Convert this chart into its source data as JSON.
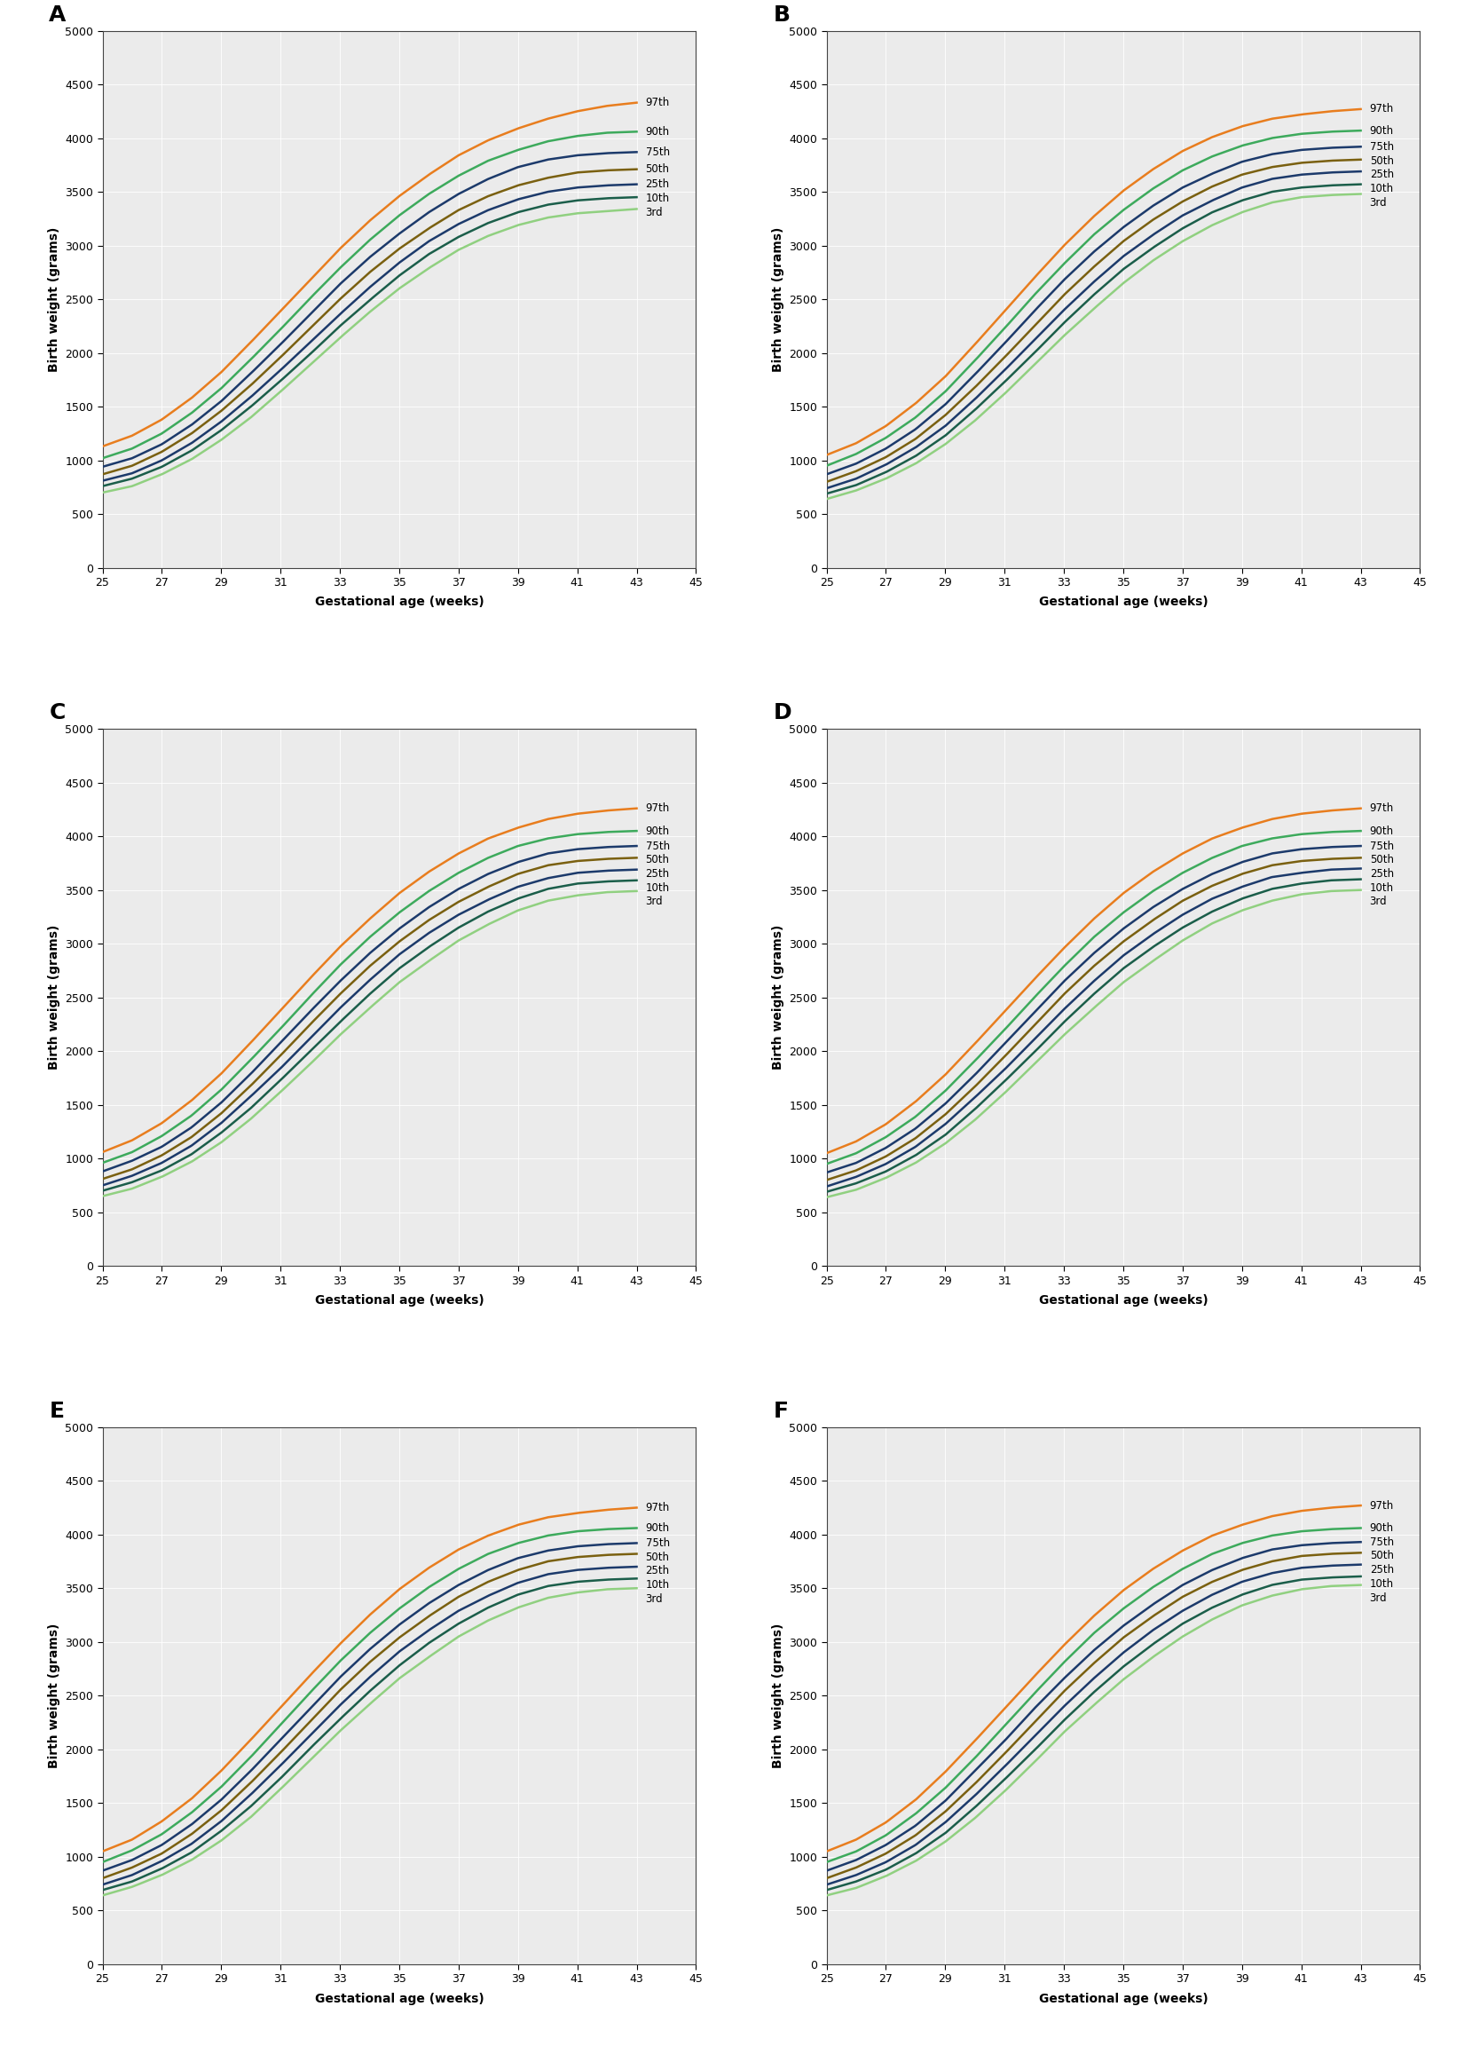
{
  "panel_labels": [
    "A",
    "B",
    "C",
    "D",
    "E",
    "F"
  ],
  "x_label": "Gestational age (weeks)",
  "y_label": "Birth weight (grams)",
  "x_ticks": [
    25,
    27,
    29,
    31,
    33,
    35,
    37,
    39,
    41,
    43,
    45
  ],
  "y_ticks": [
    0,
    500,
    1000,
    1500,
    2000,
    2500,
    3000,
    3500,
    4000,
    4500,
    5000
  ],
  "xlim": [
    25,
    45
  ],
  "ylim": [
    0,
    5000
  ],
  "percentile_labels": [
    "97th",
    "90th",
    "75th",
    "50th",
    "25th",
    "10th",
    "3rd"
  ],
  "line_colors": {
    "p97": "#E87D1E",
    "p90": "#3DAA5C",
    "p75": "#1C3A6B",
    "p50": "#7A6010",
    "p25": "#1C3A6B",
    "p10": "#1B5E4A",
    "p3": "#90D080"
  },
  "background_color": "#EBEBEB",
  "grid_color": "#FFFFFF",
  "x_weeks": [
    25,
    26,
    27,
    28,
    29,
    30,
    31,
    32,
    33,
    34,
    35,
    36,
    37,
    38,
    39,
    40,
    41,
    42,
    43
  ],
  "panels": {
    "A": {
      "p97": [
        1130,
        1230,
        1380,
        1580,
        1820,
        2100,
        2390,
        2680,
        2970,
        3230,
        3460,
        3660,
        3840,
        3980,
        4090,
        4180,
        4250,
        4300,
        4330
      ],
      "p90": [
        1020,
        1110,
        1250,
        1440,
        1670,
        1940,
        2220,
        2510,
        2790,
        3050,
        3280,
        3480,
        3650,
        3790,
        3890,
        3970,
        4020,
        4050,
        4060
      ],
      "p75": [
        940,
        1020,
        1150,
        1330,
        1550,
        1810,
        2080,
        2360,
        2640,
        2890,
        3110,
        3310,
        3480,
        3620,
        3730,
        3800,
        3840,
        3860,
        3870
      ],
      "p50": [
        870,
        950,
        1080,
        1250,
        1460,
        1700,
        1960,
        2230,
        2500,
        2750,
        2970,
        3160,
        3330,
        3460,
        3560,
        3630,
        3680,
        3700,
        3710
      ],
      "p25": [
        810,
        880,
        1000,
        1160,
        1360,
        1590,
        1840,
        2100,
        2360,
        2610,
        2840,
        3040,
        3200,
        3330,
        3430,
        3500,
        3540,
        3560,
        3570
      ],
      "p10": [
        760,
        830,
        940,
        1090,
        1280,
        1500,
        1740,
        1990,
        2250,
        2490,
        2720,
        2920,
        3080,
        3210,
        3310,
        3380,
        3420,
        3440,
        3450
      ],
      "p3": [
        700,
        760,
        870,
        1010,
        1190,
        1400,
        1640,
        1890,
        2140,
        2380,
        2600,
        2790,
        2960,
        3090,
        3190,
        3260,
        3300,
        3320,
        3340
      ]
    },
    "B": {
      "p97": [
        1050,
        1160,
        1320,
        1530,
        1780,
        2080,
        2390,
        2700,
        3000,
        3270,
        3510,
        3710,
        3880,
        4010,
        4110,
        4180,
        4220,
        4250,
        4270
      ],
      "p90": [
        950,
        1060,
        1210,
        1400,
        1640,
        1930,
        2230,
        2540,
        2830,
        3100,
        3330,
        3530,
        3700,
        3830,
        3930,
        4000,
        4040,
        4060,
        4070
      ],
      "p75": [
        870,
        970,
        1110,
        1290,
        1520,
        1800,
        2090,
        2390,
        2680,
        2940,
        3170,
        3370,
        3540,
        3670,
        3780,
        3850,
        3890,
        3910,
        3920
      ],
      "p50": [
        800,
        900,
        1030,
        1200,
        1420,
        1680,
        1960,
        2250,
        2540,
        2800,
        3040,
        3240,
        3410,
        3550,
        3660,
        3730,
        3770,
        3790,
        3800
      ],
      "p25": [
        740,
        830,
        960,
        1120,
        1320,
        1570,
        1840,
        2120,
        2400,
        2660,
        2900,
        3100,
        3280,
        3420,
        3540,
        3620,
        3660,
        3680,
        3690
      ],
      "p10": [
        690,
        770,
        890,
        1040,
        1230,
        1470,
        1730,
        2000,
        2280,
        2540,
        2780,
        2980,
        3160,
        3310,
        3420,
        3500,
        3540,
        3560,
        3570
      ],
      "p3": [
        640,
        720,
        830,
        970,
        1150,
        1370,
        1620,
        1890,
        2160,
        2410,
        2650,
        2860,
        3040,
        3190,
        3310,
        3400,
        3450,
        3470,
        3480
      ]
    },
    "C": {
      "p97": [
        1060,
        1170,
        1330,
        1540,
        1790,
        2080,
        2380,
        2680,
        2970,
        3230,
        3470,
        3670,
        3840,
        3980,
        4080,
        4160,
        4210,
        4240,
        4260
      ],
      "p90": [
        960,
        1060,
        1210,
        1400,
        1640,
        1920,
        2210,
        2510,
        2800,
        3060,
        3290,
        3490,
        3660,
        3800,
        3910,
        3980,
        4020,
        4040,
        4050
      ],
      "p75": [
        880,
        980,
        1110,
        1290,
        1520,
        1790,
        2080,
        2370,
        2650,
        2910,
        3140,
        3340,
        3510,
        3650,
        3760,
        3840,
        3880,
        3900,
        3910
      ],
      "p50": [
        810,
        900,
        1030,
        1200,
        1420,
        1680,
        1960,
        2250,
        2530,
        2790,
        3020,
        3220,
        3390,
        3530,
        3650,
        3730,
        3770,
        3790,
        3800
      ],
      "p25": [
        750,
        840,
        960,
        1120,
        1330,
        1580,
        1840,
        2120,
        2400,
        2660,
        2900,
        3100,
        3270,
        3410,
        3530,
        3610,
        3660,
        3680,
        3690
      ],
      "p10": [
        700,
        780,
        890,
        1040,
        1240,
        1470,
        1730,
        2000,
        2270,
        2530,
        2770,
        2970,
        3150,
        3300,
        3420,
        3510,
        3560,
        3580,
        3590
      ],
      "p3": [
        650,
        720,
        830,
        970,
        1150,
        1370,
        1620,
        1880,
        2150,
        2400,
        2640,
        2840,
        3030,
        3180,
        3310,
        3400,
        3450,
        3480,
        3490
      ]
    },
    "D": {
      "p97": [
        1050,
        1160,
        1320,
        1530,
        1780,
        2070,
        2370,
        2670,
        2960,
        3230,
        3470,
        3670,
        3840,
        3980,
        4080,
        4160,
        4210,
        4240,
        4260
      ],
      "p90": [
        950,
        1050,
        1200,
        1390,
        1630,
        1910,
        2200,
        2500,
        2790,
        3060,
        3290,
        3490,
        3660,
        3800,
        3910,
        3980,
        4020,
        4040,
        4050
      ],
      "p75": [
        870,
        960,
        1100,
        1280,
        1510,
        1780,
        2070,
        2360,
        2650,
        2910,
        3140,
        3340,
        3510,
        3650,
        3760,
        3840,
        3880,
        3900,
        3910
      ],
      "p50": [
        800,
        890,
        1020,
        1190,
        1410,
        1670,
        1950,
        2240,
        2530,
        2790,
        3020,
        3220,
        3400,
        3540,
        3650,
        3730,
        3770,
        3790,
        3800
      ],
      "p25": [
        740,
        830,
        950,
        1110,
        1320,
        1570,
        1830,
        2110,
        2390,
        2650,
        2890,
        3090,
        3270,
        3420,
        3530,
        3620,
        3660,
        3690,
        3700
      ],
      "p10": [
        690,
        770,
        880,
        1030,
        1220,
        1460,
        1720,
        1990,
        2270,
        2530,
        2770,
        2970,
        3150,
        3300,
        3420,
        3510,
        3560,
        3590,
        3600
      ],
      "p3": [
        640,
        710,
        820,
        960,
        1140,
        1360,
        1610,
        1880,
        2150,
        2400,
        2640,
        2840,
        3030,
        3190,
        3310,
        3400,
        3460,
        3490,
        3500
      ]
    },
    "E": {
      "p97": [
        1050,
        1160,
        1330,
        1540,
        1800,
        2090,
        2390,
        2690,
        2980,
        3250,
        3490,
        3690,
        3860,
        3990,
        4090,
        4160,
        4200,
        4230,
        4250
      ],
      "p90": [
        950,
        1060,
        1210,
        1410,
        1650,
        1930,
        2230,
        2530,
        2820,
        3080,
        3310,
        3510,
        3680,
        3820,
        3920,
        3990,
        4030,
        4050,
        4060
      ],
      "p75": [
        870,
        970,
        1110,
        1300,
        1530,
        1800,
        2090,
        2380,
        2670,
        2930,
        3160,
        3360,
        3530,
        3670,
        3780,
        3850,
        3890,
        3910,
        3920
      ],
      "p50": [
        800,
        900,
        1030,
        1210,
        1430,
        1690,
        1970,
        2260,
        2550,
        2810,
        3040,
        3240,
        3420,
        3560,
        3670,
        3750,
        3790,
        3810,
        3820
      ],
      "p25": [
        740,
        830,
        960,
        1120,
        1330,
        1580,
        1850,
        2130,
        2410,
        2670,
        2910,
        3110,
        3290,
        3430,
        3550,
        3630,
        3670,
        3690,
        3700
      ],
      "p10": [
        690,
        770,
        890,
        1040,
        1240,
        1470,
        1730,
        2010,
        2280,
        2540,
        2780,
        2990,
        3170,
        3320,
        3440,
        3520,
        3560,
        3580,
        3590
      ],
      "p3": [
        640,
        720,
        830,
        970,
        1150,
        1370,
        1630,
        1900,
        2170,
        2420,
        2660,
        2860,
        3050,
        3200,
        3320,
        3410,
        3460,
        3490,
        3500
      ]
    },
    "F": {
      "p97": [
        1050,
        1160,
        1320,
        1530,
        1790,
        2080,
        2380,
        2680,
        2970,
        3240,
        3480,
        3680,
        3850,
        3990,
        4090,
        4170,
        4220,
        4250,
        4270
      ],
      "p90": [
        950,
        1050,
        1200,
        1400,
        1640,
        1920,
        2220,
        2520,
        2810,
        3080,
        3310,
        3510,
        3680,
        3820,
        3920,
        3990,
        4030,
        4050,
        4060
      ],
      "p75": [
        870,
        970,
        1110,
        1290,
        1520,
        1800,
        2080,
        2380,
        2660,
        2920,
        3150,
        3350,
        3530,
        3670,
        3780,
        3860,
        3900,
        3920,
        3930
      ],
      "p50": [
        800,
        900,
        1030,
        1200,
        1420,
        1680,
        1960,
        2250,
        2540,
        2800,
        3040,
        3240,
        3420,
        3560,
        3670,
        3750,
        3800,
        3820,
        3830
      ],
      "p25": [
        740,
        830,
        950,
        1110,
        1320,
        1570,
        1840,
        2120,
        2400,
        2660,
        2900,
        3110,
        3290,
        3440,
        3560,
        3640,
        3690,
        3710,
        3720
      ],
      "p10": [
        690,
        770,
        880,
        1030,
        1220,
        1460,
        1720,
        1990,
        2270,
        2530,
        2770,
        2980,
        3170,
        3320,
        3440,
        3530,
        3580,
        3600,
        3610
      ],
      "p3": [
        640,
        710,
        820,
        960,
        1140,
        1360,
        1610,
        1880,
        2160,
        2410,
        2650,
        2860,
        3050,
        3210,
        3340,
        3430,
        3490,
        3520,
        3530
      ]
    }
  }
}
